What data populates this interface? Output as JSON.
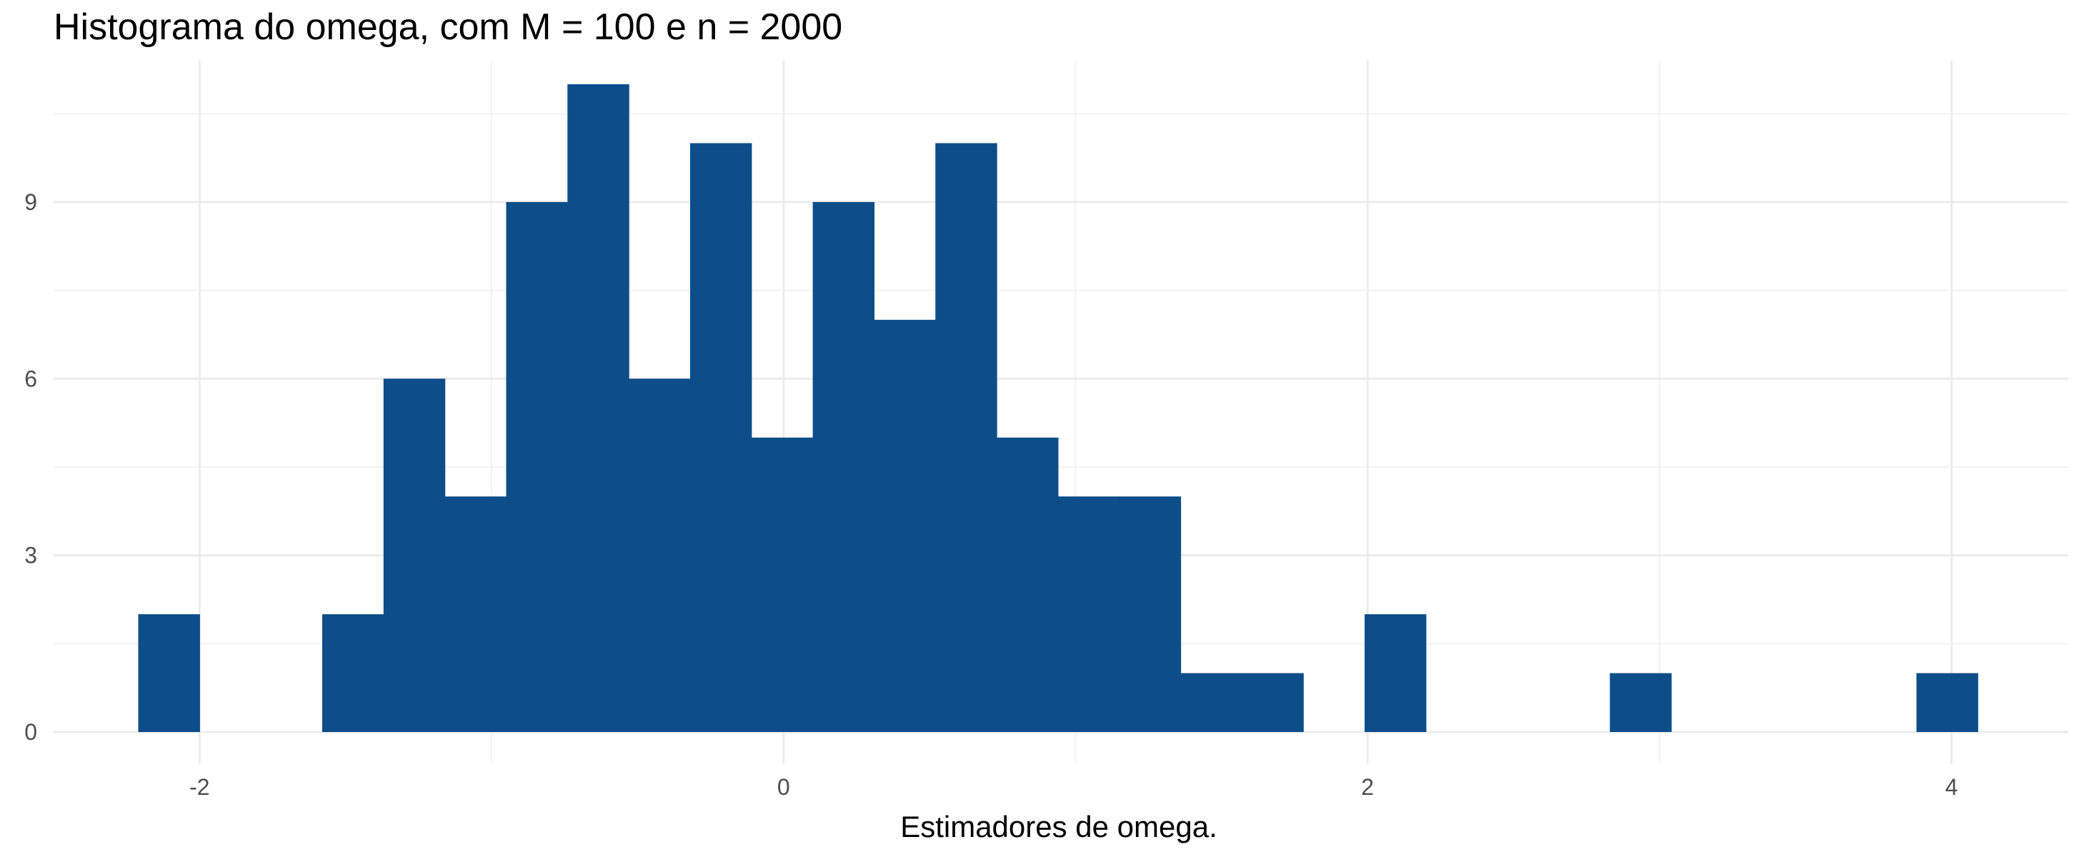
{
  "chart_data": {
    "type": "bar",
    "title": "Histograma do omega, com M = 100 e n = 2000",
    "xlabel": "Estimadores de omega.",
    "ylabel": "",
    "xlim": [
      -2.5,
      4.4
    ],
    "ylim": [
      0,
      11.4
    ],
    "x_ticks": [
      -2,
      0,
      2,
      4
    ],
    "x_tick_labels": [
      "-2",
      "0",
      "2",
      "4"
    ],
    "y_ticks": [
      0,
      3,
      6,
      9
    ],
    "y_tick_labels": [
      "0",
      "3",
      "6",
      "9"
    ],
    "grid": true,
    "bar_color": "#0d4d8a",
    "bins": [
      {
        "x_start": -2.21,
        "x_end": -2.0,
        "count": 2
      },
      {
        "x_start": -1.58,
        "x_end": -1.37,
        "count": 2
      },
      {
        "x_start": -1.37,
        "x_end": -1.16,
        "count": 6
      },
      {
        "x_start": -1.16,
        "x_end": -0.95,
        "count": 4
      },
      {
        "x_start": -0.95,
        "x_end": -0.74,
        "count": 9
      },
      {
        "x_start": -0.74,
        "x_end": -0.53,
        "count": 11
      },
      {
        "x_start": -0.53,
        "x_end": -0.32,
        "count": 6
      },
      {
        "x_start": -0.32,
        "x_end": -0.11,
        "count": 10
      },
      {
        "x_start": -0.11,
        "x_end": 0.1,
        "count": 5
      },
      {
        "x_start": 0.1,
        "x_end": 0.31,
        "count": 9
      },
      {
        "x_start": 0.31,
        "x_end": 0.52,
        "count": 7
      },
      {
        "x_start": 0.52,
        "x_end": 0.73,
        "count": 10
      },
      {
        "x_start": 0.73,
        "x_end": 0.94,
        "count": 5
      },
      {
        "x_start": 0.94,
        "x_end": 1.15,
        "count": 4
      },
      {
        "x_start": 1.15,
        "x_end": 1.36,
        "count": 4
      },
      {
        "x_start": 1.36,
        "x_end": 1.57,
        "count": 1
      },
      {
        "x_start": 1.57,
        "x_end": 1.78,
        "count": 1
      },
      {
        "x_start": 1.99,
        "x_end": 2.2,
        "count": 2
      },
      {
        "x_start": 2.83,
        "x_end": 3.04,
        "count": 1
      },
      {
        "x_start": 3.88,
        "x_end": 4.09,
        "count": 1
      }
    ]
  }
}
